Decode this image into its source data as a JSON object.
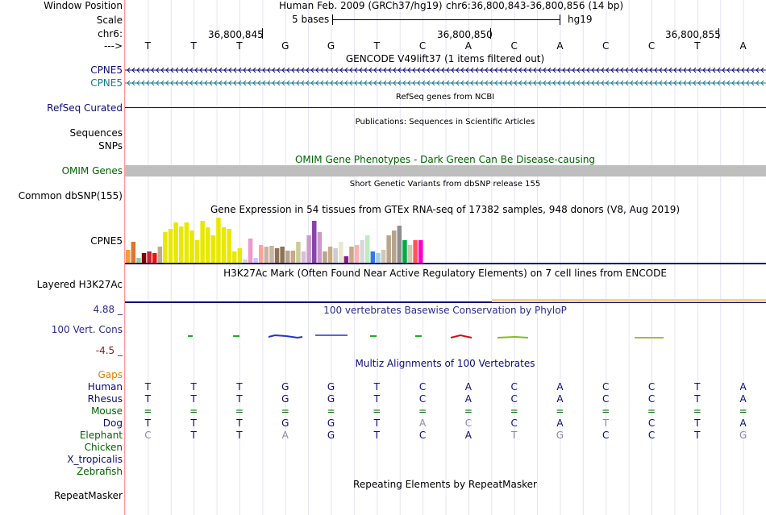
{
  "header": {
    "window_position_label": "Window Position",
    "scale_label": "Scale",
    "chrom_label": "chr6:",
    "strand_label": "--->",
    "assembly_text": "Human Feb. 2009 (GRCh37/hg19)",
    "position_text": "chr6:36,800,843-36,800,856 (14 bp)",
    "scale_text": "5 bases",
    "db_text": "hg19",
    "ruler_ticks": [
      "36,800,845",
      "36,800,850",
      "36,800,855"
    ]
  },
  "bases": [
    "T",
    "T",
    "T",
    "G",
    "G",
    "T",
    "C",
    "A",
    "C",
    "A",
    "C",
    "C",
    "T",
    "A"
  ],
  "gencode": {
    "title": "GENCODE V49lift37 (1 items filtered out)",
    "genes": [
      {
        "label": "CPNE5",
        "color": "#0c0c78"
      },
      {
        "label": "CPNE5",
        "color": "#167a90"
      }
    ]
  },
  "refseq": {
    "label": "RefSeq Curated",
    "title": "RefSeq genes from NCBI",
    "color": "#0c0c78"
  },
  "publications": {
    "label": "Sequences",
    "title": "Publications: Sequences in Scientific Articles"
  },
  "snps_label": "SNPs",
  "omim": {
    "label": "OMIM Genes",
    "title": "OMIM Gene Phenotypes - Dark Green Can Be Disease-causing",
    "color": "#006400"
  },
  "dbsnp": {
    "label": "Common dbSNP(155)",
    "title": "Short Genetic Variants from dbSNP release 155"
  },
  "gtex": {
    "label": "CPNE5",
    "title": "Gene Expression in 54 tissues from GTEx RNA-seq of 17382 samples, 948 donors (V8, Aug 2019)",
    "chart_data": {
      "type": "bar",
      "values": [
        16,
        26,
        6,
        12,
        14,
        12,
        20,
        38,
        42,
        50,
        45,
        50,
        40,
        28,
        52,
        44,
        34,
        56,
        44,
        42,
        14,
        18,
        4,
        30,
        6,
        22,
        20,
        21,
        18,
        20,
        15,
        15,
        26,
        14,
        34,
        52,
        38,
        14,
        20,
        18,
        26,
        8,
        20,
        22,
        28,
        34,
        14,
        12,
        16,
        34,
        40,
        46,
        28,
        22,
        28,
        28
      ],
      "colors": [
        "#f89c3e",
        "#d97830",
        "#9bca97",
        "#800000",
        "#cc2233",
        "#ee1111",
        "#c0aa88",
        "#e8e800",
        "#e8e800",
        "#e8e800",
        "#e8e800",
        "#e8e800",
        "#e8e800",
        "#e8e800",
        "#e8e800",
        "#e8e800",
        "#e8e800",
        "#e8e800",
        "#e8e800",
        "#e8e800",
        "#e8e800",
        "#e8e800",
        "#d3d3d3",
        "#ee99cc",
        "#c8c8ff",
        "#ffa0a0",
        "#c8b4a0",
        "#c8b4a0",
        "#8b7355",
        "#8b7355",
        "#b8a48c",
        "#c8aa88",
        "#cccc99",
        "#d8bfd8",
        "#cc99cc",
        "#8844aa",
        "#cc99cc",
        "#b8a48c",
        "#c8aa88",
        "#cccccc",
        "#e8e8d0",
        "#8b1a8b",
        "#c8a888",
        "#ffb0b0",
        "#d8d8d8",
        "#bbeebb",
        "#3377ee",
        "#a6cee3",
        "#d0c8b0",
        "#b8a48c",
        "#b8a48c",
        "#8f8f8f",
        "#00aa44",
        "#d0c8b0",
        "#ff5555",
        "#ff00cc"
      ]
    }
  },
  "h3k27ac": {
    "label": "Layered H3K27Ac",
    "title": "H3K27Ac Mark (Often Found Near Active Regulatory Elements) on 7 cell lines from ENCODE"
  },
  "phylop": {
    "label": "100 Vert. Cons",
    "max": "4.88 _",
    "min": "-4.5 _",
    "title": "100 vertebrates Basewise Conservation by PhyloP",
    "color": "#2b2b8f"
  },
  "multiz": {
    "title": "Multiz Alignments of 100 Vertebrates",
    "gaps_label": "Gaps",
    "species": [
      {
        "name": "Human",
        "color": "#0c0c78",
        "bases": [
          "T",
          "T",
          "T",
          "G",
          "G",
          "T",
          "C",
          "A",
          "C",
          "A",
          "C",
          "C",
          "T",
          "A"
        ],
        "faint": [
          false,
          false,
          false,
          false,
          false,
          false,
          false,
          false,
          false,
          false,
          false,
          false,
          false,
          false
        ]
      },
      {
        "name": "Rhesus",
        "color": "#0c0c78",
        "bases": [
          "T",
          "T",
          "T",
          "G",
          "G",
          "T",
          "C",
          "A",
          "C",
          "A",
          "C",
          "C",
          "T",
          "A"
        ],
        "faint": [
          false,
          false,
          false,
          false,
          false,
          false,
          false,
          false,
          false,
          false,
          false,
          false,
          false,
          false
        ]
      },
      {
        "name": "Mouse",
        "color": "#006400",
        "bases": [
          "=",
          "=",
          "=",
          "=",
          "=",
          "=",
          "=",
          "=",
          "=",
          "=",
          "=",
          "=",
          "=",
          "="
        ],
        "faint": [
          false,
          false,
          false,
          false,
          false,
          false,
          false,
          false,
          false,
          false,
          false,
          false,
          false,
          false
        ]
      },
      {
        "name": "Dog",
        "color": "#0c0c78",
        "bases": [
          "T",
          "T",
          "T",
          "G",
          "G",
          "T",
          "A",
          "C",
          "C",
          "A",
          "T",
          "C",
          "T",
          "A"
        ],
        "faint": [
          false,
          false,
          false,
          false,
          false,
          false,
          true,
          true,
          false,
          false,
          true,
          false,
          false,
          false
        ]
      },
      {
        "name": "Elephant",
        "color": "#006400",
        "bases": [
          "C",
          "T",
          "T",
          "A",
          "G",
          "T",
          "C",
          "A",
          "T",
          "G",
          "C",
          "C",
          "T",
          "G"
        ],
        "faint": [
          true,
          false,
          false,
          true,
          false,
          false,
          false,
          false,
          true,
          true,
          false,
          false,
          false,
          true
        ]
      },
      {
        "name": "Chicken",
        "color": "#006400",
        "bases": [],
        "faint": []
      },
      {
        "name": "X_tropicalis",
        "color": "#0c0c78",
        "bases": [],
        "faint": []
      },
      {
        "name": "Zebrafish",
        "color": "#006400",
        "bases": [],
        "faint": []
      }
    ]
  },
  "repeatmasker": {
    "label": "RepeatMasker",
    "title": "Repeating Elements by RepeatMasker"
  },
  "colors": {
    "gaps_label": "#e08000",
    "phylop_min": "#8b1a1a",
    "gtex_baseline": "#0c0c78",
    "omim_bar": "#bebebe"
  }
}
